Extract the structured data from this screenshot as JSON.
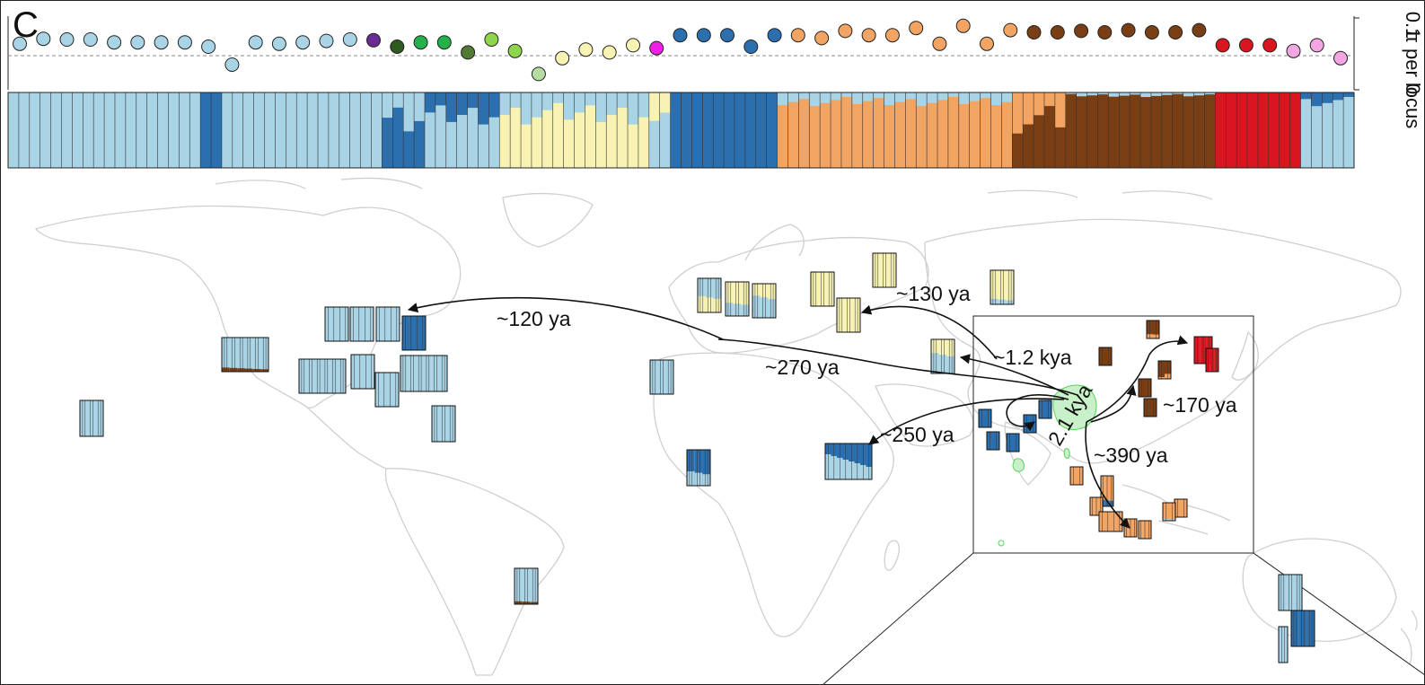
{
  "panel": {
    "letter": "C"
  },
  "diversity_axis": {
    "label": "π per locus",
    "ticks": [
      "0",
      "0.1"
    ],
    "ylim": [
      0,
      0.1
    ],
    "dashed_reference": 0.07
  },
  "colors": {
    "light_blue": "#a8d4e6",
    "dark_blue": "#2b6fae",
    "yellow": "#f8f3b3",
    "orange": "#f2a462",
    "brown": "#7a3e14",
    "red": "#d9161f",
    "purple": "#6a2b94",
    "dark_green": "#2e5a1f",
    "green": "#24b14a",
    "olive": "#4f7c32",
    "lime": "#8ed44d",
    "pale_green": "#b7dca2",
    "magenta": "#f01ee6",
    "pink": "#f4a6e3",
    "map_line": "#cfcfcf",
    "range_green": "#55d35a"
  },
  "diversity_points": [
    {
      "color": "#a8d4e6",
      "value": 0.064
    },
    {
      "color": "#a8d4e6",
      "value": 0.071
    },
    {
      "color": "#a8d4e6",
      "value": 0.07
    },
    {
      "color": "#a8d4e6",
      "value": 0.07
    },
    {
      "color": "#a8d4e6",
      "value": 0.066
    },
    {
      "color": "#a8d4e6",
      "value": 0.066
    },
    {
      "color": "#a8d4e6",
      "value": 0.066
    },
    {
      "color": "#a8d4e6",
      "value": 0.066
    },
    {
      "color": "#a8d4e6",
      "value": 0.06
    },
    {
      "color": "#a8d4e6",
      "value": 0.035
    },
    {
      "color": "#a8d4e6",
      "value": 0.066
    },
    {
      "color": "#a8d4e6",
      "value": 0.064
    },
    {
      "color": "#a8d4e6",
      "value": 0.066
    },
    {
      "color": "#a8d4e6",
      "value": 0.068
    },
    {
      "color": "#a8d4e6",
      "value": 0.07
    },
    {
      "color": "#6a2b94",
      "value": 0.069
    },
    {
      "color": "#2e5a1f",
      "value": 0.06
    },
    {
      "color": "#24b14a",
      "value": 0.066
    },
    {
      "color": "#24b14a",
      "value": 0.066
    },
    {
      "color": "#4f7c32",
      "value": 0.052
    },
    {
      "color": "#8ed44d",
      "value": 0.07
    },
    {
      "color": "#8ed44d",
      "value": 0.054
    },
    {
      "color": "#b7dca2",
      "value": 0.022
    },
    {
      "color": "#f8f3b3",
      "value": 0.044
    },
    {
      "color": "#f8f3b3",
      "value": 0.056
    },
    {
      "color": "#f8f3b3",
      "value": 0.052
    },
    {
      "color": "#f8f3b3",
      "value": 0.062
    },
    {
      "color": "#f01ee6",
      "value": 0.058
    },
    {
      "color": "#2b6fae",
      "value": 0.076
    },
    {
      "color": "#2b6fae",
      "value": 0.076
    },
    {
      "color": "#2b6fae",
      "value": 0.076
    },
    {
      "color": "#2b6fae",
      "value": 0.06
    },
    {
      "color": "#2b6fae",
      "value": 0.076
    },
    {
      "color": "#f2a462",
      "value": 0.076
    },
    {
      "color": "#f2a462",
      "value": 0.072
    },
    {
      "color": "#f2a462",
      "value": 0.082
    },
    {
      "color": "#f2a462",
      "value": 0.076
    },
    {
      "color": "#f2a462",
      "value": 0.076
    },
    {
      "color": "#f2a462",
      "value": 0.086
    },
    {
      "color": "#f2a462",
      "value": 0.064
    },
    {
      "color": "#f2a462",
      "value": 0.089
    },
    {
      "color": "#f2a462",
      "value": 0.064
    },
    {
      "color": "#f2a462",
      "value": 0.083
    },
    {
      "color": "#7a3e14",
      "value": 0.08
    },
    {
      "color": "#7a3e14",
      "value": 0.08
    },
    {
      "color": "#7a3e14",
      "value": 0.082
    },
    {
      "color": "#7a3e14",
      "value": 0.08
    },
    {
      "color": "#7a3e14",
      "value": 0.083
    },
    {
      "color": "#7a3e14",
      "value": 0.08
    },
    {
      "color": "#7a3e14",
      "value": 0.08
    },
    {
      "color": "#7a3e14",
      "value": 0.083
    },
    {
      "color": "#d9161f",
      "value": 0.062
    },
    {
      "color": "#d9161f",
      "value": 0.062
    },
    {
      "color": "#d9161f",
      "value": 0.062
    },
    {
      "color": "#f4a6e3",
      "value": 0.054
    },
    {
      "color": "#f4a6e3",
      "value": 0.062
    },
    {
      "color": "#f4a6e3",
      "value": 0.044
    }
  ],
  "ancestry_blocks": [
    {
      "main": "#a8d4e6",
      "n": 18,
      "alt": "#2b6fae",
      "alt_frac": 0.0
    },
    {
      "main": "#2b6fae",
      "n": 2,
      "alt": "#a8d4e6",
      "alt_frac": 0.0
    },
    {
      "main": "#a8d4e6",
      "n": 15,
      "alt": "#7a3e14",
      "alt_frac": 0.0
    },
    {
      "main": "#2b6fae",
      "n": 4,
      "alt": "#a8d4e6",
      "alt_frac": 0.5
    },
    {
      "main": "#a8d4e6",
      "n": 7,
      "alt": "#2b6fae",
      "alt_frac": 0.35
    },
    {
      "main": "#f8f3b3",
      "n": 14,
      "alt": "#a8d4e6",
      "alt_frac": 0.35
    },
    {
      "main": "#a8d4e6",
      "n": 2,
      "alt": "#f8f3b3",
      "alt_frac": 0.4
    },
    {
      "main": "#2b6fae",
      "n": 10,
      "alt": "#a8d4e6",
      "alt_frac": 0.0
    },
    {
      "main": "#f2a462",
      "n": 22,
      "alt": "#a8d4e6",
      "alt_frac": 0.15
    },
    {
      "main": "#7a3e14",
      "n": 5,
      "alt": "#f2a462",
      "alt_frac": 0.45
    },
    {
      "main": "#7a3e14",
      "n": 14,
      "alt": "#a8d4e6",
      "alt_frac": 0.05
    },
    {
      "main": "#d9161f",
      "n": 8,
      "alt": "#a8d4e6",
      "alt_frac": 0.0
    },
    {
      "main": "#a8d4e6",
      "n": 5,
      "alt": "#2b6fae",
      "alt_frac": 0.15
    }
  ],
  "annotations": [
    {
      "id": "t120",
      "text": "~120 ya"
    },
    {
      "id": "t130",
      "text": "~130 ya"
    },
    {
      "id": "t270",
      "text": "~270 ya"
    },
    {
      "id": "t12k",
      "text": "~1.2 kya"
    },
    {
      "id": "t21k",
      "text": "2.1 kya"
    },
    {
      "id": "t250",
      "text": "~250 ya"
    },
    {
      "id": "t170",
      "text": "~170 ya"
    },
    {
      "id": "t390",
      "text": "~390 ya"
    }
  ],
  "map_samples": [
    {
      "name": "us-west",
      "main": "#a8d4e6",
      "alt": "#7a3e14",
      "bars": 6,
      "alt_frac": 0.1
    },
    {
      "name": "hawaii",
      "main": "#a8d4e6",
      "alt": "#2b6fae",
      "bars": 3,
      "alt_frac": 0.0
    },
    {
      "name": "us-ne-1",
      "main": "#a8d4e6",
      "alt": "#2b6fae",
      "bars": 4,
      "alt_frac": 0.0
    },
    {
      "name": "us-ne-2",
      "main": "#a8d4e6",
      "alt": "#2b6fae",
      "bars": 4,
      "alt_frac": 0.0
    },
    {
      "name": "us-ne-3",
      "main": "#a8d4e6",
      "alt": "#2b6fae",
      "bars": 4,
      "alt_frac": 0.0
    },
    {
      "name": "us-ne-4",
      "main": "#2b6fae",
      "alt": "#a8d4e6",
      "bars": 4,
      "alt_frac": 0.0
    },
    {
      "name": "us-s-1",
      "main": "#a8d4e6",
      "alt": "#2b6fae",
      "bars": 6,
      "alt_frac": 0.0
    },
    {
      "name": "us-s-2",
      "main": "#a8d4e6",
      "alt": "#2b6fae",
      "bars": 4,
      "alt_frac": 0.0
    },
    {
      "name": "us-s-3",
      "main": "#a8d4e6",
      "alt": "#2b6fae",
      "bars": 4,
      "alt_frac": 0.0
    },
    {
      "name": "us-se",
      "main": "#a8d4e6",
      "alt": "#7a3e14",
      "bars": 6,
      "alt_frac": 0.0
    },
    {
      "name": "caribbean",
      "main": "#a8d4e6",
      "alt": "#2b6fae",
      "bars": 3,
      "alt_frac": 0.0
    },
    {
      "name": "brazil",
      "main": "#a8d4e6",
      "alt": "#7a3e14",
      "bars": 3,
      "alt_frac": 0.1
    },
    {
      "name": "eu-1",
      "main": "#a8d4e6",
      "alt": "#f8f3b3",
      "bars": 3,
      "alt_frac": 0.4
    },
    {
      "name": "eu-2",
      "main": "#f8f3b3",
      "alt": "#a8d4e6",
      "bars": 3,
      "alt_frac": 0.3
    },
    {
      "name": "eu-3",
      "main": "#f8f3b3",
      "alt": "#a8d4e6",
      "bars": 3,
      "alt_frac": 0.5
    },
    {
      "name": "east-eu-1",
      "main": "#f8f3b3",
      "alt": "#a8d4e6",
      "bars": 3,
      "alt_frac": 0.0
    },
    {
      "name": "east-eu-2",
      "main": "#f8f3b3",
      "alt": "#a8d4e6",
      "bars": 3,
      "alt_frac": 0.0
    },
    {
      "name": "russia",
      "main": "#f8f3b3",
      "alt": "#a8d4e6",
      "bars": 3,
      "alt_frac": 0.0
    },
    {
      "name": "central-asia",
      "main": "#f8f3b3",
      "alt": "#a8d4e6",
      "bars": 3,
      "alt_frac": 0.2
    },
    {
      "name": "middle-east",
      "main": "#f8f3b3",
      "alt": "#a8d4e6",
      "bars": 3,
      "alt_frac": 0.5
    },
    {
      "name": "north-africa",
      "main": "#a8d4e6",
      "alt": "#2b6fae",
      "bars": 3,
      "alt_frac": 0.0
    },
    {
      "name": "west-africa",
      "main": "#2b6fae",
      "alt": "#a8d4e6",
      "bars": 3,
      "alt_frac": 0.4
    },
    {
      "name": "east-africa",
      "main": "#2b6fae",
      "alt": "#a8d4e6",
      "bars": 8,
      "alt_frac": 0.5
    },
    {
      "name": "india-1",
      "main": "#2b6fae",
      "alt": "#a8d4e6",
      "bars": 2,
      "alt_frac": 0.0
    },
    {
      "name": "india-2",
      "main": "#2b6fae",
      "alt": "#a8d4e6",
      "bars": 2,
      "alt_frac": 0.0
    },
    {
      "name": "india-3",
      "main": "#2b6fae",
      "alt": "#a8d4e6",
      "bars": 2,
      "alt_frac": 0.0
    },
    {
      "name": "india-4",
      "main": "#2b6fae",
      "alt": "#a8d4e6",
      "bars": 2,
      "alt_frac": 0.0
    },
    {
      "name": "india-5",
      "main": "#2b6fae",
      "alt": "#a8d4e6",
      "bars": 2,
      "alt_frac": 0.0
    },
    {
      "name": "china-1",
      "main": "#7a3e14",
      "alt": "#f2a462",
      "bars": 2,
      "alt_frac": 0.0
    },
    {
      "name": "china-2",
      "main": "#7a3e14",
      "alt": "#f2a462",
      "bars": 2,
      "alt_frac": 0.2
    },
    {
      "name": "china-3",
      "main": "#7a3e14",
      "alt": "#f2a462",
      "bars": 2,
      "alt_frac": 0.2
    },
    {
      "name": "china-4",
      "main": "#7a3e14",
      "alt": "#f2a462",
      "bars": 2,
      "alt_frac": 0.0
    },
    {
      "name": "china-5",
      "main": "#7a3e14",
      "alt": "#f2a462",
      "bars": 2,
      "alt_frac": 0.0
    },
    {
      "name": "japan-1",
      "main": "#d9161f",
      "alt": "#7a3e14",
      "bars": 3,
      "alt_frac": 0.0
    },
    {
      "name": "japan-2",
      "main": "#d9161f",
      "alt": "#7a3e14",
      "bars": 3,
      "alt_frac": 0.0
    },
    {
      "name": "se-asia-1",
      "main": "#f2a462",
      "alt": "#a8d4e6",
      "bars": 2,
      "alt_frac": 0.0
    },
    {
      "name": "se-asia-2",
      "main": "#f2a462",
      "alt": "#2b6fae",
      "bars": 3,
      "alt_frac": 0.2
    },
    {
      "name": "se-asia-3",
      "main": "#f2a462",
      "alt": "#a8d4e6",
      "bars": 3,
      "alt_frac": 0.0
    },
    {
      "name": "se-asia-4",
      "main": "#f2a462",
      "alt": "#a8d4e6",
      "bars": 4,
      "alt_frac": 0.0
    },
    {
      "name": "se-asia-5",
      "main": "#f2a462",
      "alt": "#a8d4e6",
      "bars": 3,
      "alt_frac": 0.0
    },
    {
      "name": "se-asia-6",
      "main": "#f2a462",
      "alt": "#a8d4e6",
      "bars": 3,
      "alt_frac": 0.0
    },
    {
      "name": "philippines",
      "main": "#f2a462",
      "alt": "#a8d4e6",
      "bars": 2,
      "alt_frac": 0.0
    },
    {
      "name": "indonesia",
      "main": "#f2a462",
      "alt": "#a8d4e6",
      "bars": 2,
      "alt_frac": 0.1
    },
    {
      "name": "australia-1",
      "main": "#a8d4e6",
      "alt": "#2b6fae",
      "bars": 3,
      "alt_frac": 0.0
    },
    {
      "name": "australia-2",
      "main": "#2b6fae",
      "alt": "#a8d4e6",
      "bars": 3,
      "alt_frac": 0.0
    },
    {
      "name": "australia-3",
      "main": "#a8d4e6",
      "alt": "#2b6fae",
      "bars": 1,
      "alt_frac": 0.0
    }
  ]
}
